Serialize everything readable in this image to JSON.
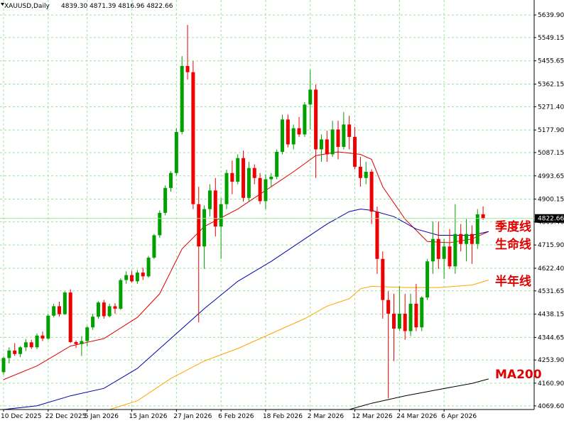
{
  "header": {
    "symbol": "XAUUSD,Daily",
    "ohlc": "4839.30 4871.39 4816.96 4822.66"
  },
  "current_price_label": "4822.66",
  "colors": {
    "bull": "#00a000",
    "bear": "#ee0000",
    "grid": "#9be39b",
    "ma_quarter": "#dd0000",
    "ma_life": "#0000aa",
    "ma_halfyear": "#ffa500",
    "ma200": "#000000",
    "annotation": "#e00000",
    "price_line": "#9be39b"
  },
  "annotations": {
    "ma_quarter": "季度线",
    "ma_life": "生命线",
    "ma_halfyear": "半年线",
    "ma200": "MA200"
  },
  "chart_data": {
    "type": "candlestick",
    "symbol": "XAUUSD",
    "timeframe": "Daily",
    "ylim": [
      4055,
      5700
    ],
    "y_ticks": [
      4069.6,
      4160.9,
      4253.9,
      4344.65,
      4438.15,
      4531.65,
      4622.4,
      4715.9,
      4809.4,
      4900.15,
      4993.65,
      5087.15,
      5177.9,
      5271.4,
      5362.15,
      5455.65,
      5549.15,
      5639.9
    ],
    "y_tick_labels": [
      "4069.60",
      "4160.90",
      "4253.90",
      "4344.65",
      "4438.15",
      "4531.65",
      "4622.40",
      "4715.90",
      "4809.40",
      "4900.15",
      "4993.65",
      "5087.15",
      "5177.90",
      "5271.40",
      "5362.15",
      "5455.65",
      "5549.15",
      "5639.90"
    ],
    "x_ticks": [
      {
        "index": 0,
        "label": "10 Dec 2025"
      },
      {
        "index": 8,
        "label": "22 Dec 2025"
      },
      {
        "index": 15,
        "label": "5 Jan 2026"
      },
      {
        "index": 23,
        "label": "15 Jan 2026"
      },
      {
        "index": 31,
        "label": "27 Jan 2026"
      },
      {
        "index": 39,
        "label": "6 Feb 2026"
      },
      {
        "index": 47,
        "label": "18 Feb 2026"
      },
      {
        "index": 55,
        "label": "2 Mar 2026"
      },
      {
        "index": 63,
        "label": "12 Mar 2026"
      },
      {
        "index": 71,
        "label": "24 Mar 2026"
      },
      {
        "index": 79,
        "label": "6 Apr 2026"
      }
    ],
    "grid": true,
    "candles": [
      [
        4205,
        4268,
        4195,
        4262
      ],
      [
        4262,
        4305,
        4240,
        4292
      ],
      [
        4292,
        4322,
        4270,
        4278
      ],
      [
        4278,
        4310,
        4265,
        4305
      ],
      [
        4305,
        4338,
        4290,
        4325
      ],
      [
        4325,
        4335,
        4298,
        4305
      ],
      [
        4305,
        4360,
        4298,
        4352
      ],
      [
        4352,
        4368,
        4330,
        4340
      ],
      [
        4340,
        4438,
        4335,
        4432
      ],
      [
        4432,
        4480,
        4425,
        4470
      ],
      [
        4470,
        4488,
        4428,
        4438
      ],
      [
        4438,
        4530,
        4435,
        4525
      ],
      [
        4525,
        4538,
        4322,
        4326
      ],
      [
        4326,
        4332,
        4302,
        4318
      ],
      [
        4318,
        4350,
        4270,
        4330
      ],
      [
        4330,
        4390,
        4310,
        4385
      ],
      [
        4385,
        4440,
        4375,
        4428
      ],
      [
        4428,
        4490,
        4420,
        4485
      ],
      [
        4485,
        4495,
        4420,
        4430
      ],
      [
        4430,
        4480,
        4425,
        4470
      ],
      [
        4470,
        4482,
        4440,
        4460
      ],
      [
        4460,
        4582,
        4455,
        4575
      ],
      [
        4575,
        4610,
        4560,
        4595
      ],
      [
        4595,
        4612,
        4565,
        4570
      ],
      [
        4570,
        4615,
        4560,
        4605
      ],
      [
        4605,
        4625,
        4575,
        4590
      ],
      [
        4590,
        4672,
        4585,
        4665
      ],
      [
        4665,
        4760,
        4660,
        4755
      ],
      [
        4755,
        4855,
        4745,
        4845
      ],
      [
        4845,
        4955,
        4835,
        4945
      ],
      [
        4945,
        5012,
        4930,
        5005
      ],
      [
        5005,
        5185,
        4995,
        5170
      ],
      [
        5170,
        5475,
        5160,
        5435
      ],
      [
        5435,
        5600,
        5380,
        5410
      ],
      [
        5410,
        5455,
        4860,
        4880
      ],
      [
        4880,
        4950,
        4405,
        4710
      ],
      [
        4710,
        4875,
        4620,
        4860
      ],
      [
        4860,
        4960,
        4830,
        4935
      ],
      [
        4935,
        4985,
        4750,
        4790
      ],
      [
        4790,
        4905,
        4660,
        4880
      ],
      [
        4880,
        5018,
        4860,
        5005
      ],
      [
        5005,
        5055,
        4920,
        4970
      ],
      [
        4970,
        5080,
        4960,
        5065
      ],
      [
        5065,
        5095,
        4890,
        4905
      ],
      [
        4905,
        5050,
        4890,
        5025
      ],
      [
        5025,
        5040,
        4960,
        4985
      ],
      [
        4985,
        5005,
        4880,
        4892
      ],
      [
        4892,
        5000,
        4860,
        4980
      ],
      [
        4980,
        5005,
        4950,
        4990
      ],
      [
        4990,
        5100,
        4980,
        5090
      ],
      [
        5090,
        5240,
        5080,
        5220
      ],
      [
        5220,
        5240,
        5108,
        5120
      ],
      [
        5120,
        5200,
        5100,
        5185
      ],
      [
        5185,
        5230,
        5150,
        5160
      ],
      [
        5160,
        5290,
        5150,
        5280
      ],
      [
        5280,
        5420,
        5180,
        5340
      ],
      [
        5340,
        5360,
        4985,
        5100
      ],
      [
        5100,
        5160,
        5050,
        5140
      ],
      [
        5140,
        5175,
        5050,
        5080
      ],
      [
        5080,
        5215,
        5070,
        5180
      ],
      [
        5180,
        5215,
        5060,
        5110
      ],
      [
        5110,
        5250,
        5100,
        5200
      ],
      [
        5200,
        5235,
        5100,
        5150
      ],
      [
        5150,
        5190,
        5020,
        5030
      ],
      [
        5030,
        5070,
        4950,
        4985
      ],
      [
        4985,
        5050,
        4960,
        5010
      ],
      [
        5010,
        5020,
        4800,
        4850
      ],
      [
        4850,
        4870,
        4600,
        4660
      ],
      [
        4660,
        4690,
        4420,
        4495
      ],
      [
        4495,
        4530,
        4100,
        4440
      ],
      [
        4440,
        4520,
        4250,
        4380
      ],
      [
        4380,
        4550,
        4370,
        4440
      ],
      [
        4440,
        4520,
        4335,
        4370
      ],
      [
        4370,
        4520,
        4350,
        4480
      ],
      [
        4480,
        4560,
        4370,
        4385
      ],
      [
        4385,
        4510,
        4370,
        4505
      ],
      [
        4505,
        4660,
        4495,
        4650
      ],
      [
        4650,
        4810,
        4600,
        4740
      ],
      [
        4740,
        4810,
        4620,
        4660
      ],
      [
        4660,
        4740,
        4580,
        4710
      ],
      [
        4710,
        4780,
        4620,
        4630
      ],
      [
        4630,
        4880,
        4600,
        4760
      ],
      [
        4760,
        4800,
        4690,
        4720
      ],
      [
        4720,
        4820,
        4650,
        4760
      ],
      [
        4760,
        4795,
        4640,
        4720
      ],
      [
        4720,
        4860,
        4700,
        4839
      ],
      [
        4839.3,
        4871.39,
        4816.96,
        4822.66
      ]
    ],
    "series": [
      {
        "name": "季度线",
        "points": [
          [
            0,
            4175
          ],
          [
            6,
            4230
          ],
          [
            12,
            4310
          ],
          [
            18,
            4340
          ],
          [
            24,
            4425
          ],
          [
            28,
            4520
          ],
          [
            32,
            4700
          ],
          [
            36,
            4790
          ],
          [
            42,
            4860
          ],
          [
            46,
            4920
          ],
          [
            52,
            5010
          ],
          [
            56,
            5075
          ],
          [
            60,
            5090
          ],
          [
            64,
            5080
          ],
          [
            66,
            5060
          ],
          [
            68,
            4950
          ],
          [
            72,
            4820
          ],
          [
            76,
            4730
          ],
          [
            80,
            4725
          ],
          [
            84,
            4740
          ],
          [
            87,
            4770
          ]
        ]
      },
      {
        "name": "生命线",
        "points": [
          [
            0,
            4055
          ],
          [
            6,
            4070
          ],
          [
            12,
            4110
          ],
          [
            18,
            4140
          ],
          [
            24,
            4220
          ],
          [
            30,
            4340
          ],
          [
            36,
            4460
          ],
          [
            42,
            4570
          ],
          [
            48,
            4650
          ],
          [
            54,
            4740
          ],
          [
            58,
            4800
          ],
          [
            62,
            4850
          ],
          [
            64,
            4860
          ],
          [
            66,
            4855
          ],
          [
            70,
            4830
          ],
          [
            74,
            4780
          ],
          [
            78,
            4755
          ],
          [
            84,
            4755
          ],
          [
            87,
            4770
          ]
        ]
      },
      {
        "name": "半年线",
        "points": [
          [
            19,
            4055
          ],
          [
            24,
            4090
          ],
          [
            30,
            4180
          ],
          [
            36,
            4250
          ],
          [
            42,
            4300
          ],
          [
            48,
            4360
          ],
          [
            54,
            4420
          ],
          [
            58,
            4470
          ],
          [
            62,
            4500
          ],
          [
            64,
            4540
          ],
          [
            66,
            4550
          ],
          [
            72,
            4545
          ],
          [
            78,
            4545
          ],
          [
            84,
            4555
          ],
          [
            87,
            4575
          ]
        ]
      },
      {
        "name": "MA200",
        "points": [
          [
            62,
            4055
          ],
          [
            66,
            4080
          ],
          [
            72,
            4110
          ],
          [
            78,
            4135
          ],
          [
            84,
            4160
          ],
          [
            87,
            4178
          ]
        ]
      }
    ]
  }
}
